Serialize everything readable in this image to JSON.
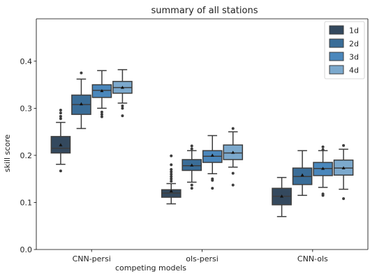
{
  "chart_data": {
    "type": "box",
    "title": "summary of all stations",
    "xlabel": "competing models",
    "ylabel": "skill score",
    "ylim": [
      0.0,
      0.49
    ],
    "yticks": [
      0.0,
      0.1,
      0.2,
      0.3,
      0.4
    ],
    "grid": false,
    "legend_position": "top-right",
    "categories": [
      "CNN-persi",
      "ols-persi",
      "CNN-ols"
    ],
    "series": [
      {
        "name": "1d",
        "color": "#34495e",
        "boxes": [
          {
            "whislo": 0.181,
            "q1": 0.205,
            "med": 0.215,
            "q3": 0.24,
            "whishi": 0.27,
            "mean": 0.222,
            "fliers": [
              0.167,
              0.278,
              0.283,
              0.29,
              0.296
            ]
          },
          {
            "whislo": 0.097,
            "q1": 0.111,
            "med": 0.12,
            "q3": 0.127,
            "whishi": 0.14,
            "mean": 0.124,
            "fliers": [
              0.145,
              0.15,
              0.155,
              0.16,
              0.165,
              0.17,
              0.18,
              0.199
            ]
          },
          {
            "whislo": 0.07,
            "q1": 0.095,
            "med": 0.113,
            "q3": 0.13,
            "whishi": 0.153,
            "mean": 0.113,
            "fliers": []
          }
        ]
      },
      {
        "name": "2d",
        "color": "#3a6d98",
        "boxes": [
          {
            "whislo": 0.257,
            "q1": 0.287,
            "med": 0.308,
            "q3": 0.328,
            "whishi": 0.362,
            "mean": 0.309,
            "fliers": [
              0.375
            ]
          },
          {
            "whislo": 0.143,
            "q1": 0.168,
            "med": 0.178,
            "q3": 0.191,
            "whishi": 0.21,
            "mean": 0.179,
            "fliers": [
              0.13,
              0.137,
              0.214,
              0.22
            ]
          },
          {
            "whislo": 0.115,
            "q1": 0.138,
            "med": 0.155,
            "q3": 0.173,
            "whishi": 0.21,
            "mean": 0.158,
            "fliers": []
          }
        ]
      },
      {
        "name": "3d",
        "color": "#4a87bc",
        "boxes": [
          {
            "whislo": 0.3,
            "q1": 0.323,
            "med": 0.338,
            "q3": 0.35,
            "whishi": 0.38,
            "mean": 0.337,
            "fliers": [
              0.282,
              0.287,
              0.292
            ]
          },
          {
            "whislo": 0.161,
            "q1": 0.185,
            "med": 0.198,
            "q3": 0.21,
            "whishi": 0.242,
            "mean": 0.2,
            "fliers": [
              0.13,
              0.147,
              0.15
            ]
          },
          {
            "whislo": 0.132,
            "q1": 0.157,
            "med": 0.172,
            "q3": 0.185,
            "whishi": 0.21,
            "mean": 0.172,
            "fliers": [
              0.115,
              0.118,
              0.212,
              0.218
            ]
          }
        ]
      },
      {
        "name": "4d",
        "color": "#7ca9cd",
        "boxes": [
          {
            "whislo": 0.311,
            "q1": 0.332,
            "med": 0.344,
            "q3": 0.357,
            "whishi": 0.382,
            "mean": 0.344,
            "fliers": [
              0.284,
              0.3,
              0.305
            ]
          },
          {
            "whislo": 0.175,
            "q1": 0.191,
            "med": 0.205,
            "q3": 0.222,
            "whishi": 0.25,
            "mean": 0.206,
            "fliers": [
              0.137,
              0.162,
              0.257
            ]
          },
          {
            "whislo": 0.128,
            "q1": 0.158,
            "med": 0.173,
            "q3": 0.19,
            "whishi": 0.213,
            "mean": 0.173,
            "fliers": [
              0.108,
              0.221
            ]
          }
        ]
      }
    ]
  }
}
